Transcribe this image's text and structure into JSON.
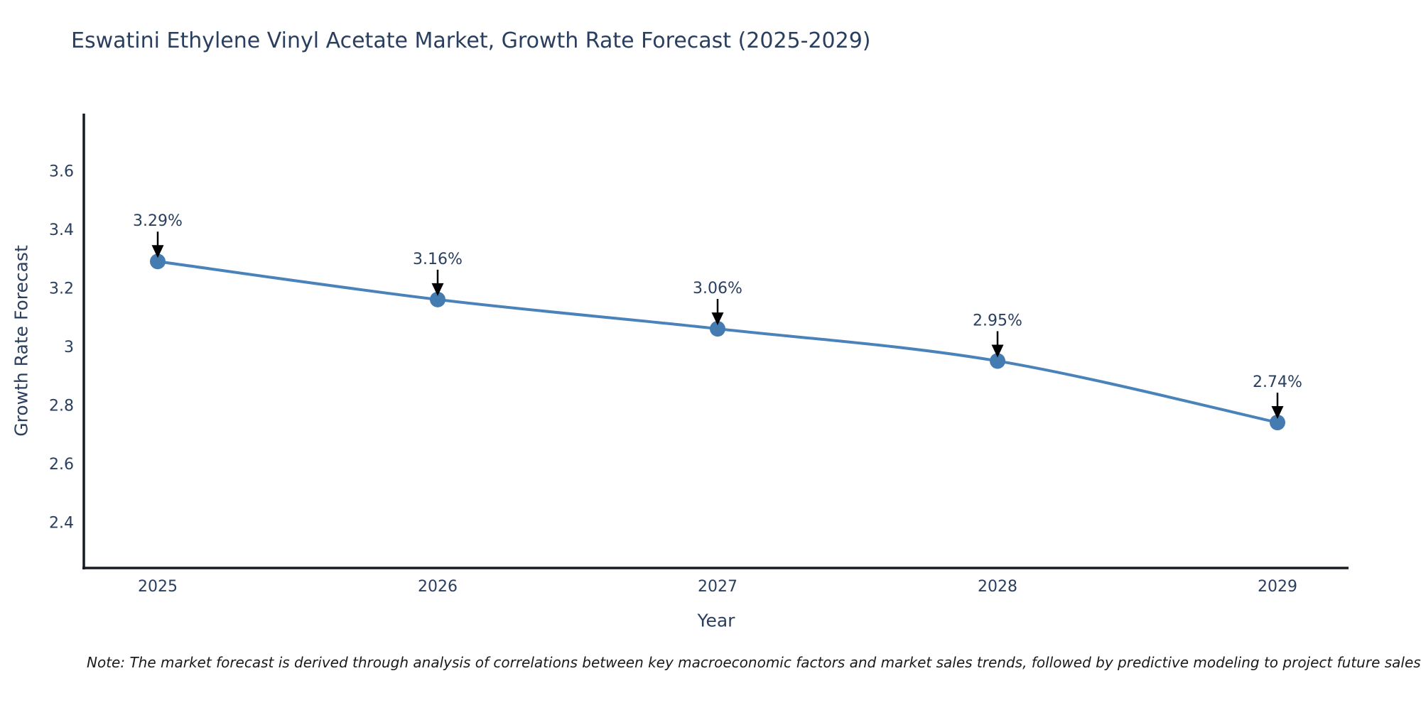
{
  "chart_data": {
    "type": "line",
    "title": "Eswatini Ethylene Vinyl Acetate Market, Growth Rate Forecast (2025-2029)",
    "xlabel": "Year",
    "ylabel": "Growth Rate Forecast",
    "x": [
      2025,
      2026,
      2027,
      2028,
      2029
    ],
    "series": [
      {
        "name": "Growth Rate Forecast",
        "values": [
          3.29,
          3.16,
          3.06,
          2.95,
          2.74
        ],
        "point_labels": [
          "3.29%",
          "3.16%",
          "3.06%",
          "2.95%",
          "2.74%"
        ],
        "line_color": "#4a82ba",
        "marker_color": "#447bb0",
        "line_shape": "spline",
        "markers": true
      }
    ],
    "xtick_labels": [
      "2025",
      "2026",
      "2027",
      "2028",
      "2029"
    ],
    "ytick_labels": [
      "2.4",
      "2.6",
      "2.8",
      "3",
      "3.2",
      "3.4",
      "3.6"
    ],
    "ytick_values": [
      2.4,
      2.6,
      2.8,
      3.0,
      3.2,
      3.4,
      3.6
    ],
    "ylim": [
      2.243,
      3.795
    ],
    "grid": false,
    "legend": false,
    "text_color": "#2a3f5f",
    "axis_color": "#151a23",
    "annotation_arrow_color": "#000000"
  },
  "note": {
    "text": "Note: The market forecast is derived through analysis of correlations between key macroeconomic factors and market sales trends, followed by predictive modeling to project future sales"
  }
}
